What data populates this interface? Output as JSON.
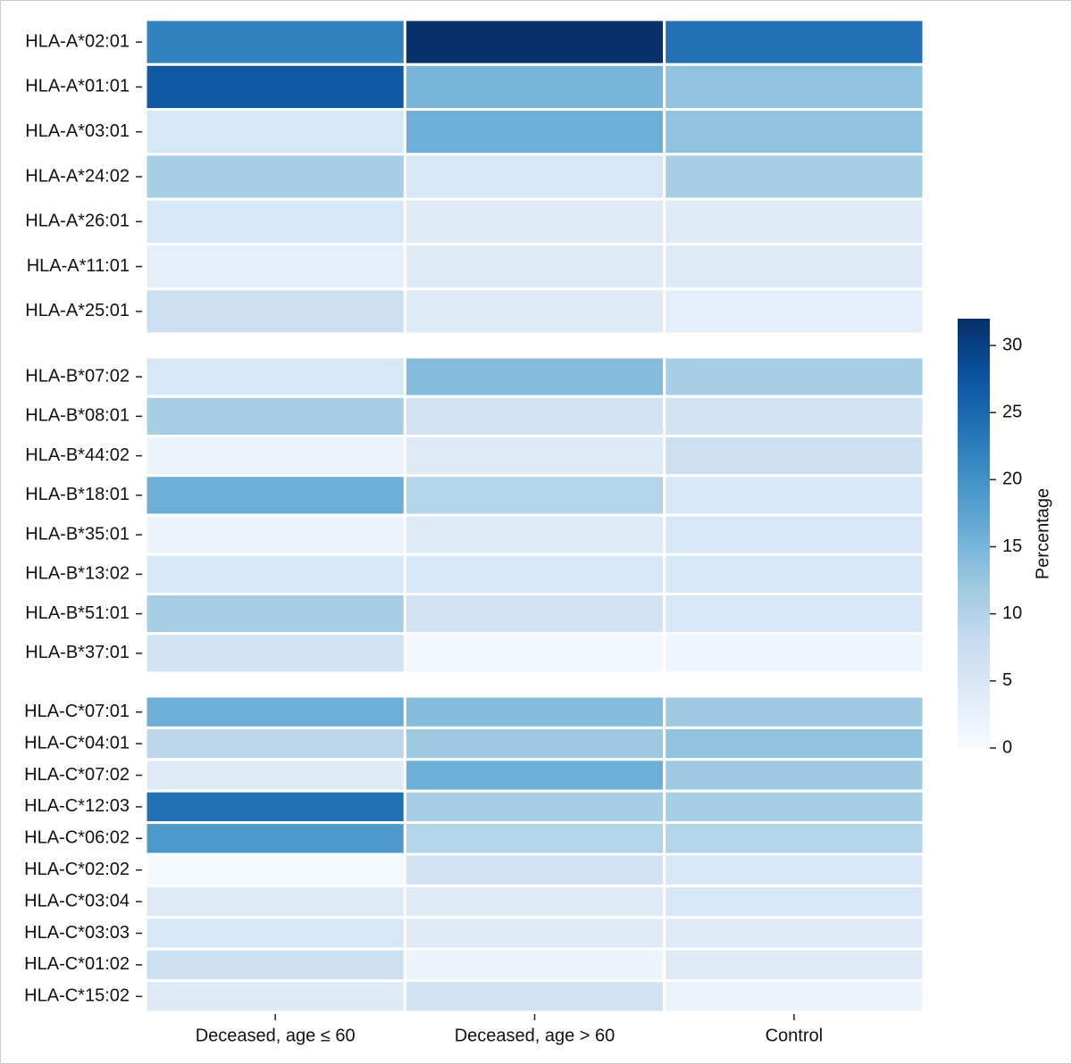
{
  "chart_data": {
    "type": "heatmap",
    "columns": [
      "Deceased, age  ≤ 60",
      "Deceased, age  > 60",
      "Control"
    ],
    "panels": [
      {
        "rows": [
          "HLA-A*02:01",
          "HLA-A*01:01",
          "HLA-A*03:01",
          "HLA-A*24:02",
          "HLA-A*26:01",
          "HLA-A*11:01",
          "HLA-A*25:01"
        ],
        "values": [
          [
            22,
            32,
            24
          ],
          [
            27,
            15,
            13
          ],
          [
            5,
            16,
            13
          ],
          [
            11,
            5,
            11
          ],
          [
            5,
            4,
            4
          ],
          [
            3,
            4,
            4
          ],
          [
            7,
            4,
            3
          ]
        ]
      },
      {
        "rows": [
          "HLA-B*07:02",
          "HLA-B*08:01",
          "HLA-B*44:02",
          "HLA-B*18:01",
          "HLA-B*35:01",
          "HLA-B*13:02",
          "HLA-B*51:01",
          "HLA-B*37:01"
        ],
        "values": [
          [
            5,
            14,
            11
          ],
          [
            11,
            6,
            6
          ],
          [
            2,
            4,
            7
          ],
          [
            16,
            10,
            5
          ],
          [
            2,
            4,
            5
          ],
          [
            5,
            5,
            5
          ],
          [
            11,
            6,
            5
          ],
          [
            6,
            1,
            1.5
          ]
        ]
      },
      {
        "rows": [
          "HLA-C*07:01",
          "HLA-C*04:01",
          "HLA-C*07:02",
          "HLA-C*12:03",
          "HLA-C*06:02",
          "HLA-C*02:02",
          "HLA-C*03:04",
          "HLA-C*03:03",
          "HLA-C*01:02",
          "HLA-C*15:02"
        ],
        "values": [
          [
            16,
            14,
            12
          ],
          [
            9,
            12,
            13
          ],
          [
            4,
            16,
            12
          ],
          [
            24,
            11,
            11
          ],
          [
            19,
            10,
            10
          ],
          [
            0.5,
            6,
            5
          ],
          [
            4,
            4,
            5
          ],
          [
            5,
            4,
            4
          ],
          [
            7,
            2,
            4
          ],
          [
            4,
            6,
            2
          ]
        ]
      }
    ],
    "colormap": "Blues",
    "colorbar_label": "Percentage",
    "clim": [
      0,
      32
    ],
    "cticks": [
      0,
      5,
      10,
      15,
      20,
      25,
      30
    ]
  }
}
